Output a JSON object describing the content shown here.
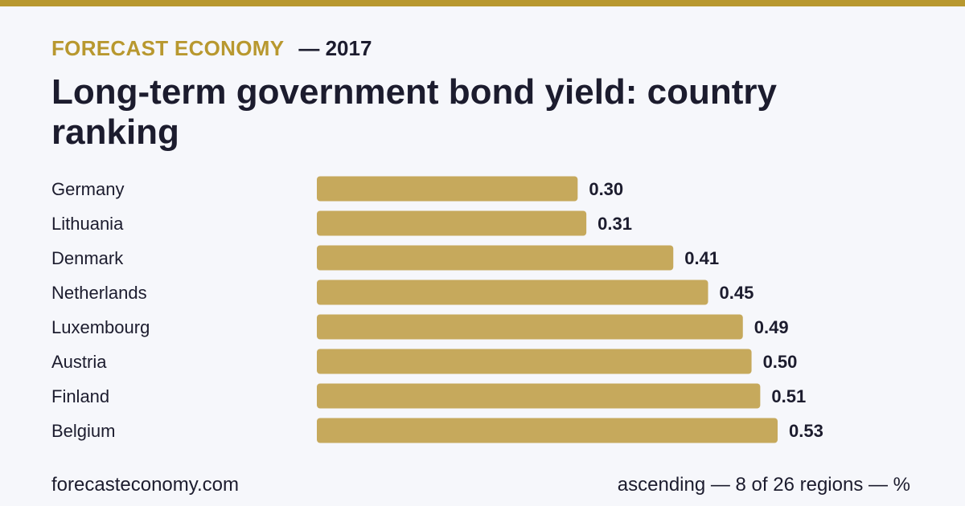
{
  "header": {
    "brand": "FORECAST ECONOMY",
    "year": "— 2017",
    "title": "Long-term government bond yield: country ranking"
  },
  "footer": {
    "site": "forecasteconomy.com",
    "note": "ascending — 8 of 26 regions — %"
  },
  "colors": {
    "accent": "#b8982f",
    "bar": "#c6a95c",
    "text": "#1c1c2e",
    "background": "#f6f7fb"
  },
  "chart_data": {
    "type": "bar",
    "orientation": "horizontal",
    "categories": [
      "Germany",
      "Lithuania",
      "Denmark",
      "Netherlands",
      "Luxembourg",
      "Austria",
      "Finland",
      "Belgium"
    ],
    "values": [
      0.3,
      0.31,
      0.41,
      0.45,
      0.49,
      0.5,
      0.51,
      0.53
    ],
    "value_labels": [
      "0.30",
      "0.31",
      "0.41",
      "0.45",
      "0.49",
      "0.50",
      "0.51",
      "0.53"
    ],
    "title": "Long-term government bond yield: country ranking",
    "xlabel": "",
    "ylabel": "",
    "xlim": [
      0,
      0.53
    ],
    "grid": false,
    "legend": "none"
  }
}
